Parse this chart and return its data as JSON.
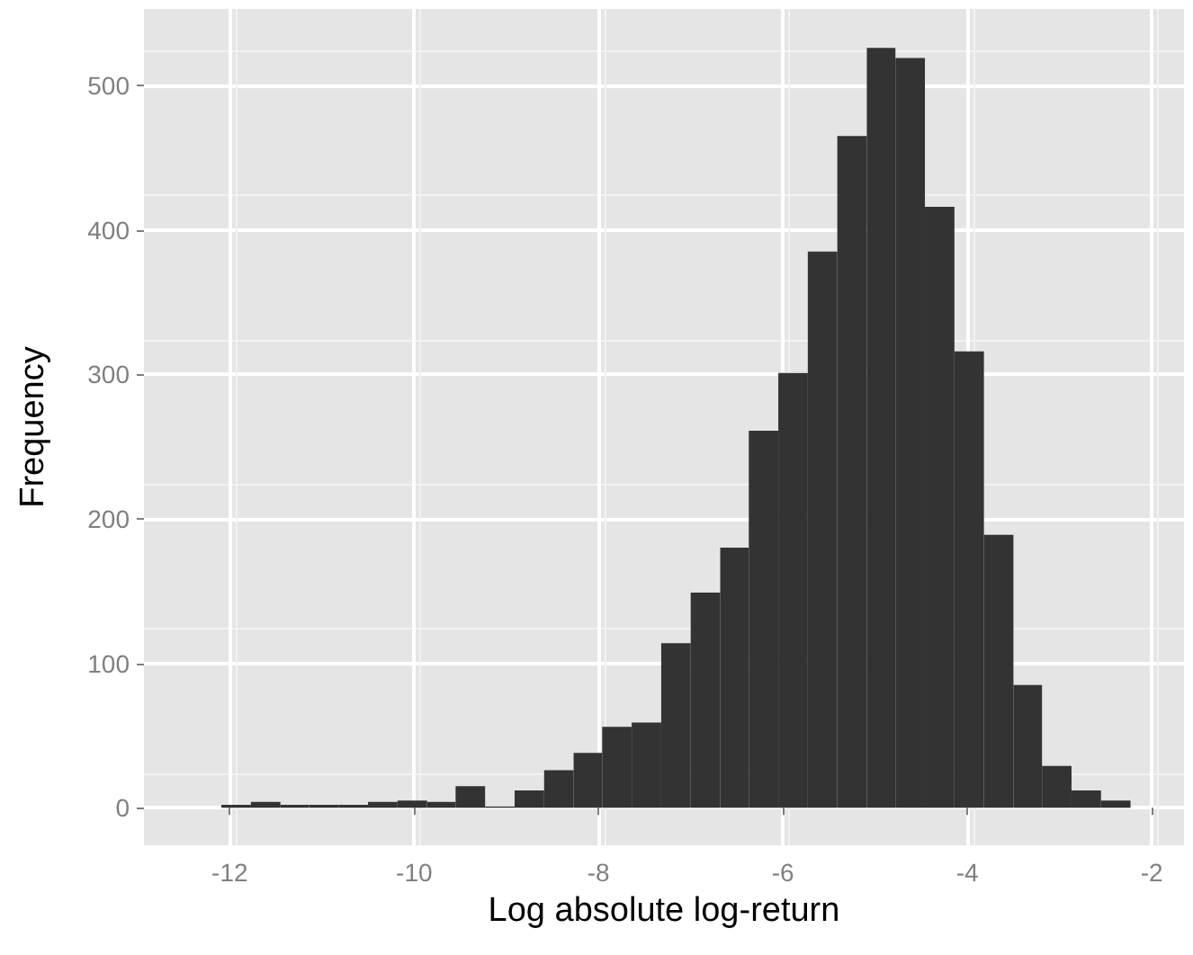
{
  "chart_data": {
    "type": "histogram",
    "xlabel": "Log absolute log-return",
    "ylabel": "Frequency",
    "color": "#333333",
    "bins": [
      -12.09,
      -11.77,
      -11.45,
      -11.14,
      -10.82,
      -10.5,
      -10.18,
      -9.86,
      -9.55,
      -9.23,
      -8.91,
      -8.59,
      -8.27,
      -7.96,
      -7.64,
      -7.32,
      -7.0,
      -6.68,
      -6.37,
      -6.05,
      -5.73,
      -5.41,
      -5.09,
      -4.78,
      -4.46,
      -4.14,
      -3.82,
      -3.5,
      -3.19,
      -2.87,
      -2.55,
      -2.23
    ],
    "values": [
      2,
      4,
      2,
      2,
      2,
      4,
      5,
      4,
      15,
      1,
      12,
      26,
      38,
      56,
      59,
      114,
      149,
      180,
      261,
      301,
      385,
      465,
      526,
      519,
      416,
      316,
      189,
      85,
      29,
      12,
      5
    ],
    "xlim": [
      -12.93,
      -1.65
    ],
    "xticks": [
      -12,
      -10,
      -8,
      -6,
      -4,
      -2
    ],
    "ylim": [
      -26,
      553
    ],
    "yticks": [
      0,
      100,
      200,
      300,
      400,
      500
    ],
    "grid": true
  }
}
